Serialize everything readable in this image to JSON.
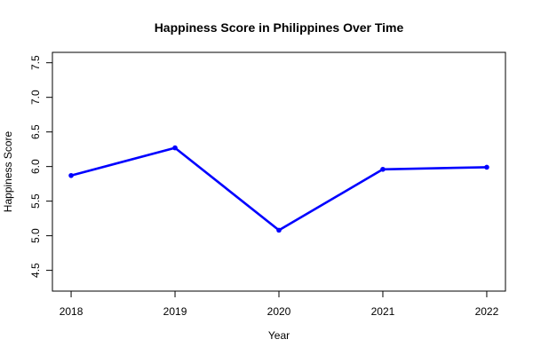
{
  "chart_data": {
    "type": "line",
    "title": "Happiness Score in Philippines Over Time",
    "xlabel": "Year",
    "ylabel": "Happiness Score",
    "x": [
      "2018",
      "2019",
      "2020",
      "2021",
      "2022"
    ],
    "series": [
      {
        "values": [
          5.87,
          6.27,
          5.08,
          5.96,
          5.99
        ],
        "color": "#0000ff"
      }
    ],
    "xlim": [
      2017.82,
      2022.18
    ],
    "ylim": [
      4.2,
      7.65
    ],
    "y_ticks": [
      "4.5",
      "5.0",
      "5.5",
      "6.0",
      "6.5",
      "7.0",
      "7.5"
    ],
    "y_tick_values": [
      4.5,
      5.0,
      5.5,
      6.0,
      6.5,
      7.0,
      7.5
    ],
    "grid": false,
    "legend": "none"
  }
}
